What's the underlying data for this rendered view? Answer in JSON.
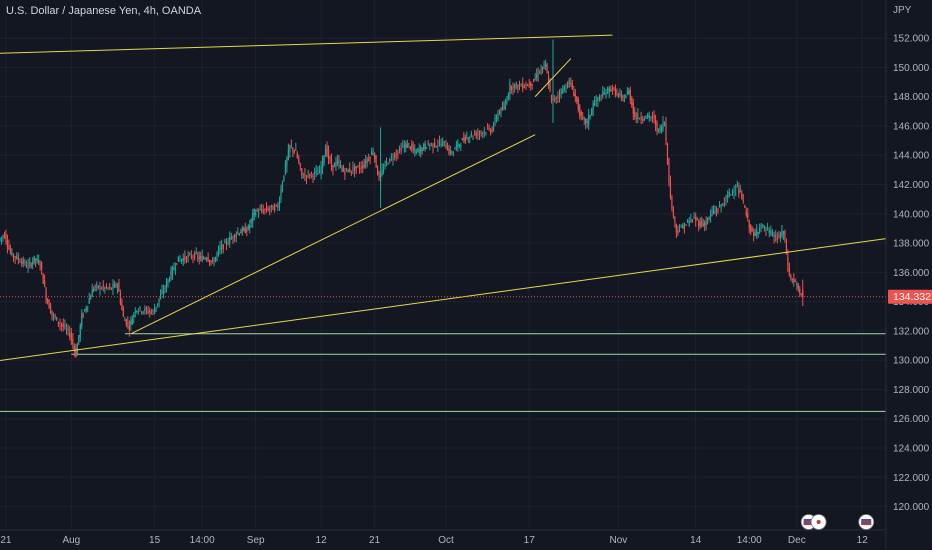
{
  "header": {
    "title": "U.S. Dollar / Japanese Yen, 4h, OANDA",
    "currency": "JPY"
  },
  "price_label": "134.332",
  "colors": {
    "background": "#131722",
    "up": "#26a69a",
    "down": "#ef5350",
    "trendline": "#e8d84a",
    "hline": "#a5d6a7",
    "grid": "#1e222d",
    "axis_text": "#b2b5be"
  },
  "icons": [
    "flag-us-icon",
    "flag-jp-icon",
    "flag-us-icon"
  ],
  "chart_data": {
    "type": "candlestick",
    "title": "U.S. Dollar / Japanese Yen, 4h, OANDA",
    "ylabel": "JPY",
    "ylim": [
      118.4,
      154.6
    ],
    "yticks": [
      120,
      122,
      124,
      126,
      128,
      130,
      132,
      134,
      136,
      138,
      140,
      142,
      144,
      146,
      148,
      150,
      152
    ],
    "xlim": [
      "2022-07-20",
      "2022-12-16"
    ],
    "xticks": [
      {
        "date": "2022-07-21",
        "label": "21"
      },
      {
        "date": "2022-08-01",
        "label": "Aug"
      },
      {
        "date": "2022-08-15",
        "label": "15"
      },
      {
        "date": "2022-08-23",
        "label": "14:00"
      },
      {
        "date": "2022-09-01",
        "label": "Sep"
      },
      {
        "date": "2022-09-12",
        "label": "12"
      },
      {
        "date": "2022-09-21",
        "label": "21"
      },
      {
        "date": "2022-10-03",
        "label": "Oct"
      },
      {
        "date": "2022-10-17",
        "label": "17"
      },
      {
        "date": "2022-11-01",
        "label": "Nov"
      },
      {
        "date": "2022-11-14",
        "label": "14"
      },
      {
        "date": "2022-11-23",
        "label": "14:00"
      },
      {
        "date": "2022-12-01",
        "label": "Dec"
      },
      {
        "date": "2022-12-12",
        "label": "12"
      }
    ],
    "last_price": 134.332,
    "price_path": [
      [
        "2022-07-20",
        138.2
      ],
      [
        "2022-07-21",
        138.6
      ],
      [
        "2022-07-22",
        137.3
      ],
      [
        "2022-07-25",
        136.4
      ],
      [
        "2022-07-26",
        136.9
      ],
      [
        "2022-07-27",
        136.6
      ],
      [
        "2022-07-28",
        134.3
      ],
      [
        "2022-07-29",
        133.1
      ],
      [
        "2022-08-01",
        131.8
      ],
      [
        "2022-08-02",
        130.4
      ],
      [
        "2022-08-03",
        133.0
      ],
      [
        "2022-08-04",
        133.9
      ],
      [
        "2022-08-05",
        135.0
      ],
      [
        "2022-08-08",
        134.9
      ],
      [
        "2022-08-09",
        135.2
      ],
      [
        "2022-08-10",
        132.9
      ],
      [
        "2022-08-11",
        132.3
      ],
      [
        "2022-08-12",
        133.5
      ],
      [
        "2022-08-15",
        133.3
      ],
      [
        "2022-08-16",
        134.2
      ],
      [
        "2022-08-17",
        135.0
      ],
      [
        "2022-08-18",
        135.9
      ],
      [
        "2022-08-19",
        136.8
      ],
      [
        "2022-08-22",
        137.2
      ],
      [
        "2022-08-23",
        136.9
      ],
      [
        "2022-08-24",
        137.1
      ],
      [
        "2022-08-25",
        136.6
      ],
      [
        "2022-08-26",
        137.5
      ],
      [
        "2022-08-29",
        138.7
      ],
      [
        "2022-08-30",
        138.8
      ],
      [
        "2022-08-31",
        139.0
      ],
      [
        "2022-09-01",
        140.1
      ],
      [
        "2022-09-02",
        140.2
      ],
      [
        "2022-09-05",
        140.5
      ],
      [
        "2022-09-06",
        142.8
      ],
      [
        "2022-09-07",
        144.6
      ],
      [
        "2022-09-08",
        144.2
      ],
      [
        "2022-09-09",
        142.6
      ],
      [
        "2022-09-12",
        142.8
      ],
      [
        "2022-09-13",
        144.5
      ],
      [
        "2022-09-14",
        143.2
      ],
      [
        "2022-09-15",
        143.5
      ],
      [
        "2022-09-16",
        142.9
      ],
      [
        "2022-09-19",
        143.2
      ],
      [
        "2022-09-20",
        143.7
      ],
      [
        "2022-09-21",
        144.3
      ],
      [
        "2022-09-22",
        142.3
      ],
      [
        "2022-09-23",
        143.4
      ],
      [
        "2022-09-26",
        144.6
      ],
      [
        "2022-09-27",
        144.7
      ],
      [
        "2022-09-28",
        144.2
      ],
      [
        "2022-09-29",
        144.4
      ],
      [
        "2022-09-30",
        144.7
      ],
      [
        "2022-10-03",
        144.8
      ],
      [
        "2022-10-04",
        144.1
      ],
      [
        "2022-10-05",
        144.6
      ],
      [
        "2022-10-06",
        145.0
      ],
      [
        "2022-10-07",
        145.3
      ],
      [
        "2022-10-10",
        145.7
      ],
      [
        "2022-10-11",
        145.8
      ],
      [
        "2022-10-12",
        146.9
      ],
      [
        "2022-10-13",
        147.2
      ],
      [
        "2022-10-14",
        148.7
      ],
      [
        "2022-10-17",
        148.8
      ],
      [
        "2022-10-18",
        149.1
      ],
      [
        "2022-10-19",
        149.8
      ],
      [
        "2022-10-20",
        150.1
      ],
      [
        "2022-10-21",
        147.6
      ],
      [
        "2022-10-24",
        149.0
      ],
      [
        "2022-10-25",
        148.0
      ],
      [
        "2022-10-26",
        146.5
      ],
      [
        "2022-10-27",
        146.2
      ],
      [
        "2022-10-28",
        147.5
      ],
      [
        "2022-10-31",
        148.6
      ],
      [
        "2022-11-01",
        148.2
      ],
      [
        "2022-11-02",
        147.8
      ],
      [
        "2022-11-03",
        148.4
      ],
      [
        "2022-11-04",
        146.6
      ],
      [
        "2022-11-07",
        146.6
      ],
      [
        "2022-11-08",
        145.6
      ],
      [
        "2022-11-09",
        146.3
      ],
      [
        "2022-11-10",
        141.0
      ],
      [
        "2022-11-11",
        138.8
      ],
      [
        "2022-11-14",
        139.7
      ],
      [
        "2022-11-15",
        139.3
      ],
      [
        "2022-11-16",
        139.4
      ],
      [
        "2022-11-17",
        140.1
      ],
      [
        "2022-11-18",
        140.3
      ],
      [
        "2022-11-21",
        141.9
      ],
      [
        "2022-11-22",
        141.1
      ],
      [
        "2022-11-23",
        139.5
      ],
      [
        "2022-11-24",
        138.4
      ],
      [
        "2022-11-25",
        139.2
      ],
      [
        "2022-11-28",
        138.3
      ],
      [
        "2022-11-29",
        138.8
      ],
      [
        "2022-11-30",
        135.7
      ],
      [
        "2022-12-01",
        135.3
      ],
      [
        "2022-12-02",
        134.3
      ]
    ],
    "candle_extremes": [
      {
        "date": "2022-08-02",
        "low": 130.4
      },
      {
        "date": "2022-09-22",
        "high": 145.9,
        "low": 140.4
      },
      {
        "date": "2022-10-21",
        "high": 151.9,
        "low": 146.2
      },
      {
        "date": "2022-12-02",
        "low": 133.7
      }
    ],
    "trendlines": [
      {
        "from": [
          "2022-07-15",
          150.9
        ],
        "to": [
          "2022-10-31",
          152.2
        ]
      },
      {
        "from": [
          "2022-07-15",
          129.7
        ],
        "to": [
          "2022-12-16",
          138.3
        ]
      },
      {
        "from": [
          "2022-08-11",
          131.8
        ],
        "to": [
          "2022-10-18",
          145.4
        ]
      },
      {
        "from": [
          "2022-10-18",
          148.0
        ],
        "to": [
          "2022-10-24",
          150.6
        ]
      }
    ],
    "hlines": [
      {
        "price": 131.8,
        "from": "2022-08-10"
      },
      {
        "price": 130.4,
        "from": "2022-08-01"
      },
      {
        "price": 126.5,
        "from": "2022-07-15"
      }
    ],
    "grid": true
  }
}
